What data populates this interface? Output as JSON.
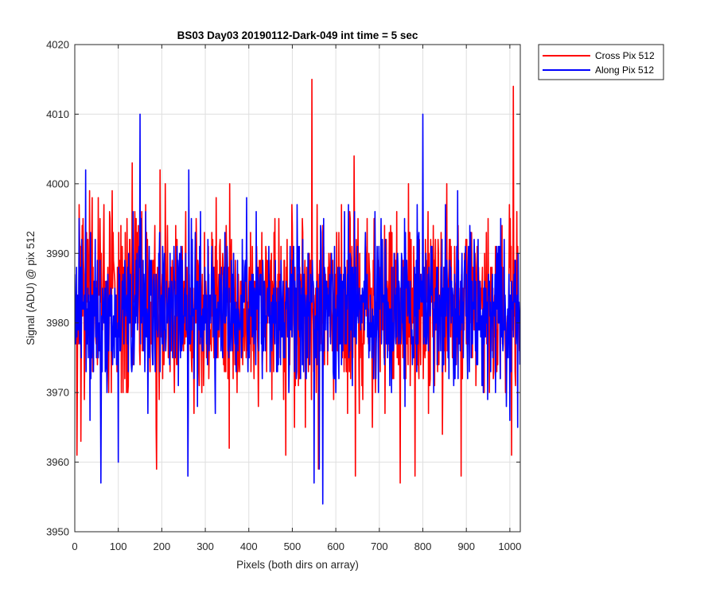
{
  "chart_data": {
    "type": "line",
    "title": "BS03 Day03 20190112-Dark-049 int time = 5 sec",
    "xlabel": "Pixels (both dirs on array)",
    "ylabel": "Signal (ADU) @ pix 512",
    "xlim": [
      0,
      1024
    ],
    "ylim": [
      3950,
      4020
    ],
    "xticks": [
      0,
      100,
      200,
      300,
      400,
      500,
      600,
      700,
      800,
      900,
      1000
    ],
    "yticks": [
      3950,
      3960,
      3970,
      3980,
      3990,
      4000,
      4010,
      4020
    ],
    "grid": true,
    "legend_position": "outside-top-right",
    "series": [
      {
        "name": "Cross Pix 512",
        "color": "#ff0000",
        "noise": {
          "count": 1024,
          "mean": 3983,
          "spread": 6.5,
          "min": 3959,
          "max": 4000,
          "seed": 7
        },
        "spikes": [
          [
            5,
            3961
          ],
          [
            14,
            3963
          ],
          [
            25,
            3992
          ],
          [
            52,
            3974
          ],
          [
            58,
            3995
          ],
          [
            132,
            4003
          ],
          [
            138,
            3996
          ],
          [
            188,
            3959
          ],
          [
            196,
            4002
          ],
          [
            208,
            4000
          ],
          [
            355,
            3962
          ],
          [
            505,
            3965
          ],
          [
            545,
            4015
          ],
          [
            560,
            3959
          ],
          [
            642,
            4004
          ],
          [
            645,
            3958
          ],
          [
            748,
            3957
          ],
          [
            782,
            3958
          ],
          [
            845,
            3964
          ],
          [
            888,
            3958
          ],
          [
            1004,
            3961
          ],
          [
            1008,
            4014
          ],
          [
            1016,
            3996
          ]
        ]
      },
      {
        "name": "Along Pix 512",
        "color": "#0000ff",
        "noise": {
          "count": 1024,
          "mean": 3982,
          "spread": 5.5,
          "min": 3960,
          "max": 3999,
          "seed": 11
        },
        "spikes": [
          [
            10,
            3995
          ],
          [
            25,
            4002
          ],
          [
            35,
            3966
          ],
          [
            60,
            3957
          ],
          [
            100,
            3960
          ],
          [
            150,
            4010
          ],
          [
            260,
            3958
          ],
          [
            262,
            4002
          ],
          [
            550,
            3957
          ],
          [
            562,
            3959
          ],
          [
            570,
            3954
          ],
          [
            800,
            4010
          ],
          [
            880,
            3999
          ],
          [
            1000,
            3966
          ],
          [
            1018,
            3965
          ]
        ]
      }
    ]
  }
}
